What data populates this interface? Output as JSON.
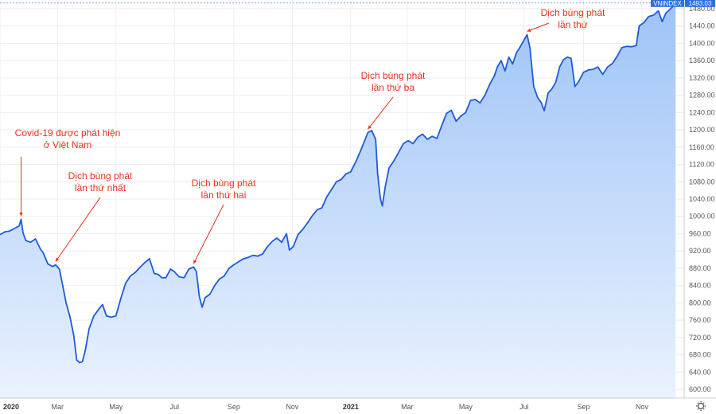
{
  "chart_data": {
    "type": "area",
    "symbol": "VNINDEX",
    "last_value": "1493.03",
    "last_value_number": 1493.03,
    "colors": {
      "line": "#1e5bd8",
      "fill_top": "#9ec3f7",
      "fill_bottom": "#eaf2fe",
      "annotation": "#e8321e",
      "badge": "#2d6fe0",
      "grid": "#eeeeee"
    },
    "ylim": [
      580,
      1500
    ],
    "y_ticks": [
      "600.00",
      "640.00",
      "680.00",
      "720.00",
      "760.00",
      "800.00",
      "840.00",
      "880.00",
      "920.00",
      "960.00",
      "1000.00",
      "1040.00",
      "1080.00",
      "1120.00",
      "1160.00",
      "1200.00",
      "1240.00",
      "1280.00",
      "1320.00",
      "1360.00",
      "1400.00",
      "1440.00",
      "1480.00"
    ],
    "x_domain": [
      "2020-01-01",
      "2021-12-15"
    ],
    "x_ticks": [
      {
        "label": "2020",
        "date": "2020-01-01",
        "major": true
      },
      {
        "label": "Mar",
        "date": "2020-03-01",
        "major": false
      },
      {
        "label": "May",
        "date": "2020-05-01",
        "major": false
      },
      {
        "label": "Jul",
        "date": "2020-07-01",
        "major": false
      },
      {
        "label": "Sep",
        "date": "2020-09-01",
        "major": false
      },
      {
        "label": "Nov",
        "date": "2020-11-01",
        "major": false
      },
      {
        "label": "2021",
        "date": "2021-01-01",
        "major": true
      },
      {
        "label": "Mar",
        "date": "2021-03-01",
        "major": false
      },
      {
        "label": "May",
        "date": "2021-05-01",
        "major": false
      },
      {
        "label": "Jul",
        "date": "2021-07-01",
        "major": false
      },
      {
        "label": "Sep",
        "date": "2021-09-01",
        "major": false
      },
      {
        "label": "Nov",
        "date": "2021-11-01",
        "major": false
      }
    ],
    "series": [
      {
        "values": [
          [
            "2020-01-01",
            958
          ],
          [
            "2020-01-06",
            964
          ],
          [
            "2020-01-11",
            966
          ],
          [
            "2020-01-16",
            972
          ],
          [
            "2020-01-21",
            978
          ],
          [
            "2020-01-23",
            993
          ],
          [
            "2020-01-25",
            962
          ],
          [
            "2020-01-28",
            944
          ],
          [
            "2020-02-02",
            940
          ],
          [
            "2020-02-07",
            948
          ],
          [
            "2020-02-12",
            925
          ],
          [
            "2020-02-15",
            916
          ],
          [
            "2020-02-20",
            890
          ],
          [
            "2020-02-25",
            884
          ],
          [
            "2020-02-28",
            888
          ],
          [
            "2020-03-03",
            878
          ],
          [
            "2020-03-06",
            845
          ],
          [
            "2020-03-10",
            800
          ],
          [
            "2020-03-14",
            768
          ],
          [
            "2020-03-18",
            725
          ],
          [
            "2020-03-21",
            668
          ],
          [
            "2020-03-24",
            662
          ],
          [
            "2020-03-27",
            664
          ],
          [
            "2020-03-30",
            690
          ],
          [
            "2020-04-03",
            740
          ],
          [
            "2020-04-08",
            770
          ],
          [
            "2020-04-13",
            785
          ],
          [
            "2020-04-17",
            796
          ],
          [
            "2020-04-21",
            770
          ],
          [
            "2020-04-26",
            767
          ],
          [
            "2020-05-01",
            770
          ],
          [
            "2020-05-06",
            810
          ],
          [
            "2020-05-11",
            845
          ],
          [
            "2020-05-16",
            862
          ],
          [
            "2020-05-21",
            870
          ],
          [
            "2020-05-26",
            882
          ],
          [
            "2020-05-31",
            893
          ],
          [
            "2020-06-05",
            902
          ],
          [
            "2020-06-10",
            868
          ],
          [
            "2020-06-14",
            866
          ],
          [
            "2020-06-18",
            858
          ],
          [
            "2020-06-22",
            858
          ],
          [
            "2020-06-27",
            878
          ],
          [
            "2020-07-01",
            872
          ],
          [
            "2020-07-06",
            860
          ],
          [
            "2020-07-11",
            858
          ],
          [
            "2020-07-16",
            878
          ],
          [
            "2020-07-21",
            883
          ],
          [
            "2020-07-24",
            872
          ],
          [
            "2020-07-27",
            815
          ],
          [
            "2020-07-30",
            790
          ],
          [
            "2020-08-02",
            812
          ],
          [
            "2020-08-07",
            820
          ],
          [
            "2020-08-12",
            840
          ],
          [
            "2020-08-17",
            855
          ],
          [
            "2020-08-22",
            862
          ],
          [
            "2020-08-27",
            880
          ],
          [
            "2020-09-01",
            888
          ],
          [
            "2020-09-06",
            895
          ],
          [
            "2020-09-11",
            902
          ],
          [
            "2020-09-16",
            905
          ],
          [
            "2020-09-21",
            910
          ],
          [
            "2020-09-26",
            908
          ],
          [
            "2020-10-01",
            913
          ],
          [
            "2020-10-06",
            930
          ],
          [
            "2020-10-11",
            942
          ],
          [
            "2020-10-16",
            950
          ],
          [
            "2020-10-21",
            940
          ],
          [
            "2020-10-26",
            960
          ],
          [
            "2020-10-29",
            922
          ],
          [
            "2020-11-02",
            930
          ],
          [
            "2020-11-07",
            958
          ],
          [
            "2020-11-12",
            970
          ],
          [
            "2020-11-17",
            985
          ],
          [
            "2020-11-22",
            1002
          ],
          [
            "2020-11-27",
            1015
          ],
          [
            "2020-12-02",
            1020
          ],
          [
            "2020-12-07",
            1045
          ],
          [
            "2020-12-12",
            1062
          ],
          [
            "2020-12-17",
            1080
          ],
          [
            "2020-12-22",
            1085
          ],
          [
            "2020-12-27",
            1098
          ],
          [
            "2021-01-01",
            1103
          ],
          [
            "2021-01-06",
            1125
          ],
          [
            "2021-01-11",
            1150
          ],
          [
            "2021-01-15",
            1172
          ],
          [
            "2021-01-19",
            1194
          ],
          [
            "2021-01-23",
            1198
          ],
          [
            "2021-01-27",
            1178
          ],
          [
            "2021-01-29",
            1100
          ],
          [
            "2021-02-01",
            1040
          ],
          [
            "2021-02-03",
            1024
          ],
          [
            "2021-02-06",
            1068
          ],
          [
            "2021-02-10",
            1112
          ],
          [
            "2021-02-15",
            1128
          ],
          [
            "2021-02-20",
            1148
          ],
          [
            "2021-02-25",
            1168
          ],
          [
            "2021-03-02",
            1175
          ],
          [
            "2021-03-07",
            1168
          ],
          [
            "2021-03-12",
            1183
          ],
          [
            "2021-03-17",
            1190
          ],
          [
            "2021-03-22",
            1178
          ],
          [
            "2021-03-27",
            1185
          ],
          [
            "2021-04-01",
            1180
          ],
          [
            "2021-04-06",
            1210
          ],
          [
            "2021-04-11",
            1238
          ],
          [
            "2021-04-16",
            1245
          ],
          [
            "2021-04-21",
            1220
          ],
          [
            "2021-04-26",
            1232
          ],
          [
            "2021-05-01",
            1240
          ],
          [
            "2021-05-06",
            1268
          ],
          [
            "2021-05-11",
            1270
          ],
          [
            "2021-05-16",
            1262
          ],
          [
            "2021-05-21",
            1280
          ],
          [
            "2021-05-26",
            1305
          ],
          [
            "2021-05-31",
            1325
          ],
          [
            "2021-06-03",
            1345
          ],
          [
            "2021-06-07",
            1360
          ],
          [
            "2021-06-11",
            1336
          ],
          [
            "2021-06-15",
            1368
          ],
          [
            "2021-06-19",
            1352
          ],
          [
            "2021-06-23",
            1378
          ],
          [
            "2021-06-27",
            1392
          ],
          [
            "2021-07-01",
            1408
          ],
          [
            "2021-07-04",
            1420
          ],
          [
            "2021-07-07",
            1390
          ],
          [
            "2021-07-11",
            1300
          ],
          [
            "2021-07-15",
            1275
          ],
          [
            "2021-07-19",
            1262
          ],
          [
            "2021-07-22",
            1244
          ],
          [
            "2021-07-26",
            1285
          ],
          [
            "2021-07-30",
            1295
          ],
          [
            "2021-08-03",
            1310
          ],
          [
            "2021-08-07",
            1345
          ],
          [
            "2021-08-11",
            1362
          ],
          [
            "2021-08-15",
            1368
          ],
          [
            "2021-08-19",
            1365
          ],
          [
            "2021-08-23",
            1300
          ],
          [
            "2021-08-27",
            1312
          ],
          [
            "2021-09-01",
            1333
          ],
          [
            "2021-09-06",
            1338
          ],
          [
            "2021-09-11",
            1340
          ],
          [
            "2021-09-16",
            1345
          ],
          [
            "2021-09-21",
            1328
          ],
          [
            "2021-09-26",
            1345
          ],
          [
            "2021-10-01",
            1353
          ],
          [
            "2021-10-06",
            1370
          ],
          [
            "2021-10-11",
            1390
          ],
          [
            "2021-10-16",
            1393
          ],
          [
            "2021-10-21",
            1392
          ],
          [
            "2021-10-26",
            1395
          ],
          [
            "2021-10-29",
            1440
          ],
          [
            "2021-11-03",
            1448
          ],
          [
            "2021-11-08",
            1462
          ],
          [
            "2021-11-13",
            1465
          ],
          [
            "2021-11-18",
            1475
          ],
          [
            "2021-11-22",
            1450
          ],
          [
            "2021-11-26",
            1470
          ],
          [
            "2021-11-30",
            1478
          ],
          [
            "2021-12-03",
            1485
          ],
          [
            "2021-12-06",
            1493
          ]
        ]
      }
    ],
    "annotations": [
      {
        "lines": [
          "Covid-19 được phát hiện",
          "ở Việt Nam"
        ],
        "target": [
          "2020-01-23",
          993
        ]
      },
      {
        "lines": [
          "Dịch bùng phát",
          "lần thứ nhất"
        ],
        "target": [
          "2020-02-28",
          888
        ]
      },
      {
        "lines": [
          "Dịch bùng phát",
          "lần thứ hai"
        ],
        "target": [
          "2020-07-21",
          883
        ]
      },
      {
        "lines": [
          "Dịch bùng phát",
          "lần thứ ba"
        ],
        "target": [
          "2021-01-19",
          1194
        ]
      },
      {
        "lines": [
          "Dịch bùng phát",
          "lần thứ"
        ],
        "target": [
          "2021-07-04",
          1420
        ]
      }
    ]
  }
}
